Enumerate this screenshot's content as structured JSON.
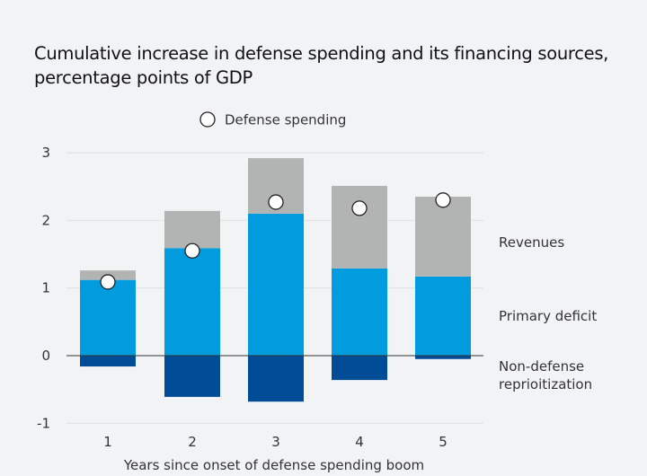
{
  "chart_data": {
    "type": "bar",
    "stacked": true,
    "title": "Cumulative increase in defense spending and its financing sources,",
    "subtitle": "percentage points of GDP",
    "xlabel": "Years since onset of defense spending boom",
    "ylabel": "",
    "categories": [
      "1",
      "2",
      "3",
      "4",
      "5"
    ],
    "ylim": [
      -1,
      3
    ],
    "yticks": [
      "3",
      "2",
      "1",
      "0",
      "-1"
    ],
    "ytick_values": [
      3,
      2,
      1,
      0,
      -1
    ],
    "grid": true,
    "series": [
      {
        "name": "Non-defense reprioitization",
        "label_lines": [
          "Non-defense",
          "reprioitization"
        ],
        "color": "#004c97",
        "values": [
          -0.16,
          -0.61,
          -0.68,
          -0.36,
          -0.05
        ]
      },
      {
        "name": "Primary deficit",
        "label_lines": [
          "Primary deficit"
        ],
        "color": "#009cde",
        "values": [
          1.12,
          1.59,
          2.1,
          1.29,
          1.17
        ]
      },
      {
        "name": "Revenues",
        "label_lines": [
          "Revenues"
        ],
        "color": "#b2b3b3",
        "values": [
          0.14,
          0.55,
          0.82,
          1.22,
          1.18
        ]
      }
    ],
    "markers": {
      "name": "Defense spending",
      "type": "circle",
      "values": [
        1.09,
        1.55,
        2.27,
        2.18,
        2.3
      ]
    },
    "legend": {
      "placement": "top-center",
      "entries": [
        "Defense spending"
      ]
    },
    "series_labels_placement": "right"
  }
}
